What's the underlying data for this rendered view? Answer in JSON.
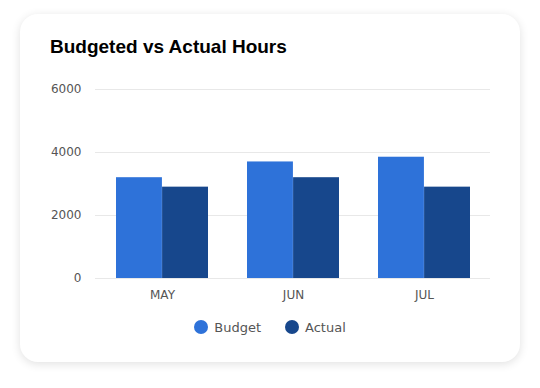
{
  "chart_data": {
    "type": "bar",
    "title": "Budgeted vs Actual Hours",
    "categories": [
      "MAY",
      "JUN",
      "JUL"
    ],
    "series": [
      {
        "name": "Budget",
        "color": "#2e72d9",
        "values": [
          3200,
          3700,
          3850
        ]
      },
      {
        "name": "Actual",
        "color": "#17478c",
        "values": [
          2900,
          3200,
          2900
        ]
      }
    ],
    "ylim": [
      0,
      6000
    ],
    "yticks": [
      0,
      2000,
      4000,
      6000
    ],
    "grid": true,
    "legend": "bottom"
  }
}
